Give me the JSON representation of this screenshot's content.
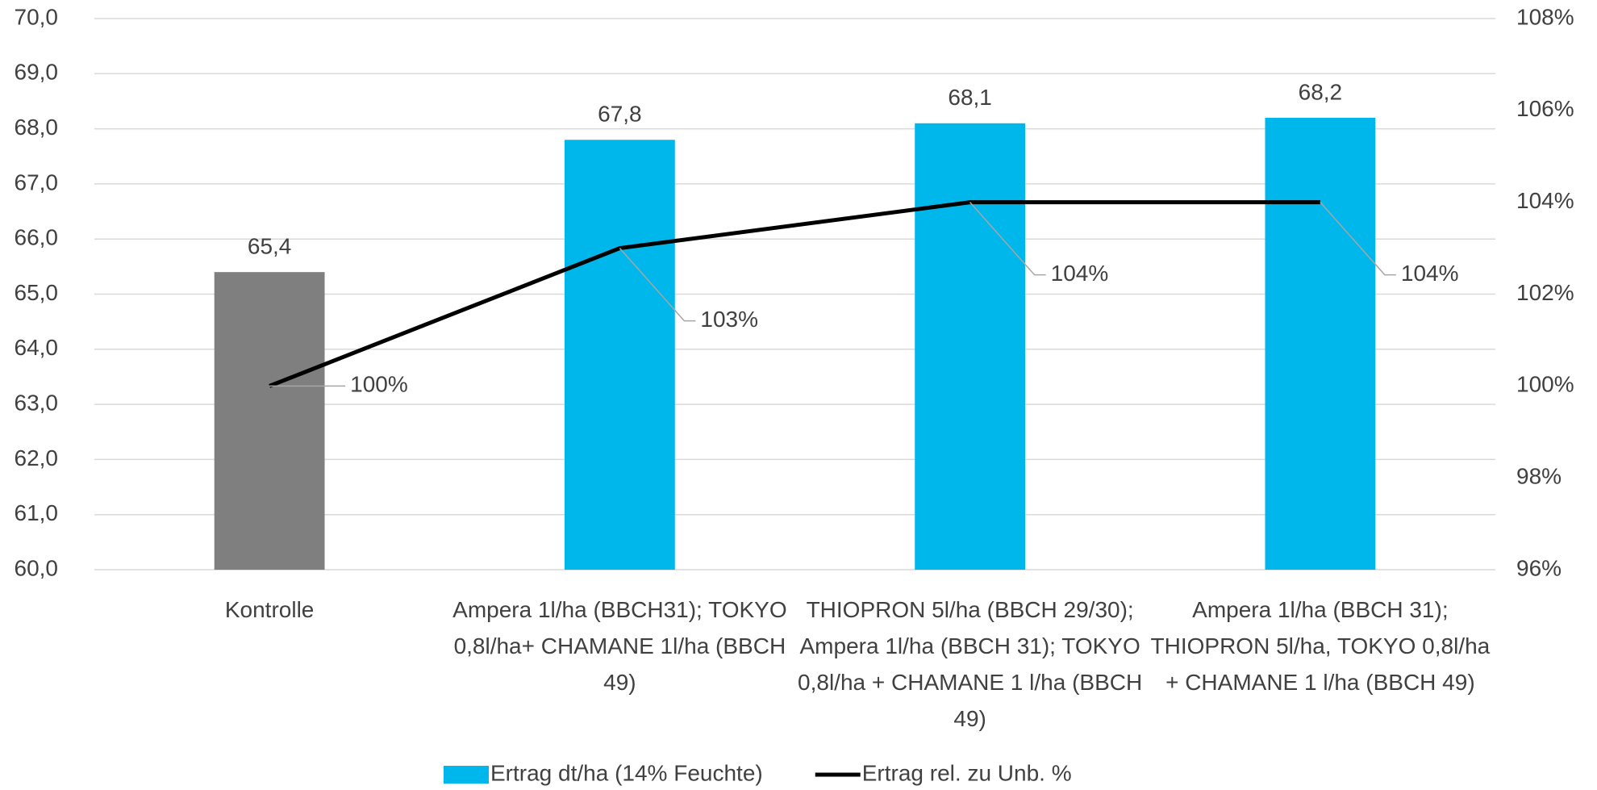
{
  "chart_data": {
    "type": "bar",
    "categories": [
      "Kontrolle",
      "Ampera 1l/ha (BBCH31); TOKYO 0,8l/ha+ CHAMANE 1l/ha (BBCH 49)",
      "THIOPRON 5l/ha (BBCH 29/30); Ampera 1l/ha (BBCH 31); TOKYO 0,8l/ha + CHAMANE 1 l/ha (BBCH 49)",
      "Ampera 1l/ha (BBCH 31); THIOPRON 5l/ha, TOKYO 0,8l/ha + CHAMANE 1 l/ha (BBCH 49)"
    ],
    "series": [
      {
        "name": "Ertrag dt/ha (14% Feuchte)",
        "type": "bar",
        "color": "#00b7eb",
        "colors": [
          "#7f7f7f",
          "#00b7eb",
          "#00b7eb",
          "#00b7eb"
        ],
        "values": [
          65.4,
          67.8,
          68.1,
          68.2
        ],
        "value_labels": [
          "65,4",
          "67,8",
          "68,1",
          "68,2"
        ]
      },
      {
        "name": "Ertrag rel. zu Unb. %",
        "type": "line",
        "axis": "y2",
        "color": "#000000",
        "values": [
          100,
          103,
          104,
          104
        ],
        "value_labels": [
          "100%",
          "103%",
          "104%",
          "104%"
        ]
      }
    ],
    "ylim": [
      60,
      70
    ],
    "yticks": [
      {
        "value": 60,
        "label": "60,0"
      },
      {
        "value": 61,
        "label": "61,0"
      },
      {
        "value": 62,
        "label": "62,0"
      },
      {
        "value": 63,
        "label": "63,0"
      },
      {
        "value": 64,
        "label": "64,0"
      },
      {
        "value": 65,
        "label": "65,0"
      },
      {
        "value": 66,
        "label": "66,0"
      },
      {
        "value": 67,
        "label": "67,0"
      },
      {
        "value": 68,
        "label": "68,0"
      },
      {
        "value": 69,
        "label": "69,0"
      },
      {
        "value": 70,
        "label": "70,0"
      }
    ],
    "y2lim": [
      96,
      108
    ],
    "y2ticks": [
      {
        "value": 96,
        "label": "96%"
      },
      {
        "value": 98,
        "label": "98%"
      },
      {
        "value": 100,
        "label": "100%"
      },
      {
        "value": 102,
        "label": "102%"
      },
      {
        "value": 104,
        "label": "104%"
      },
      {
        "value": 106,
        "label": "106%"
      },
      {
        "value": 108,
        "label": "108%"
      }
    ],
    "grid": true,
    "legend": "bottom"
  }
}
